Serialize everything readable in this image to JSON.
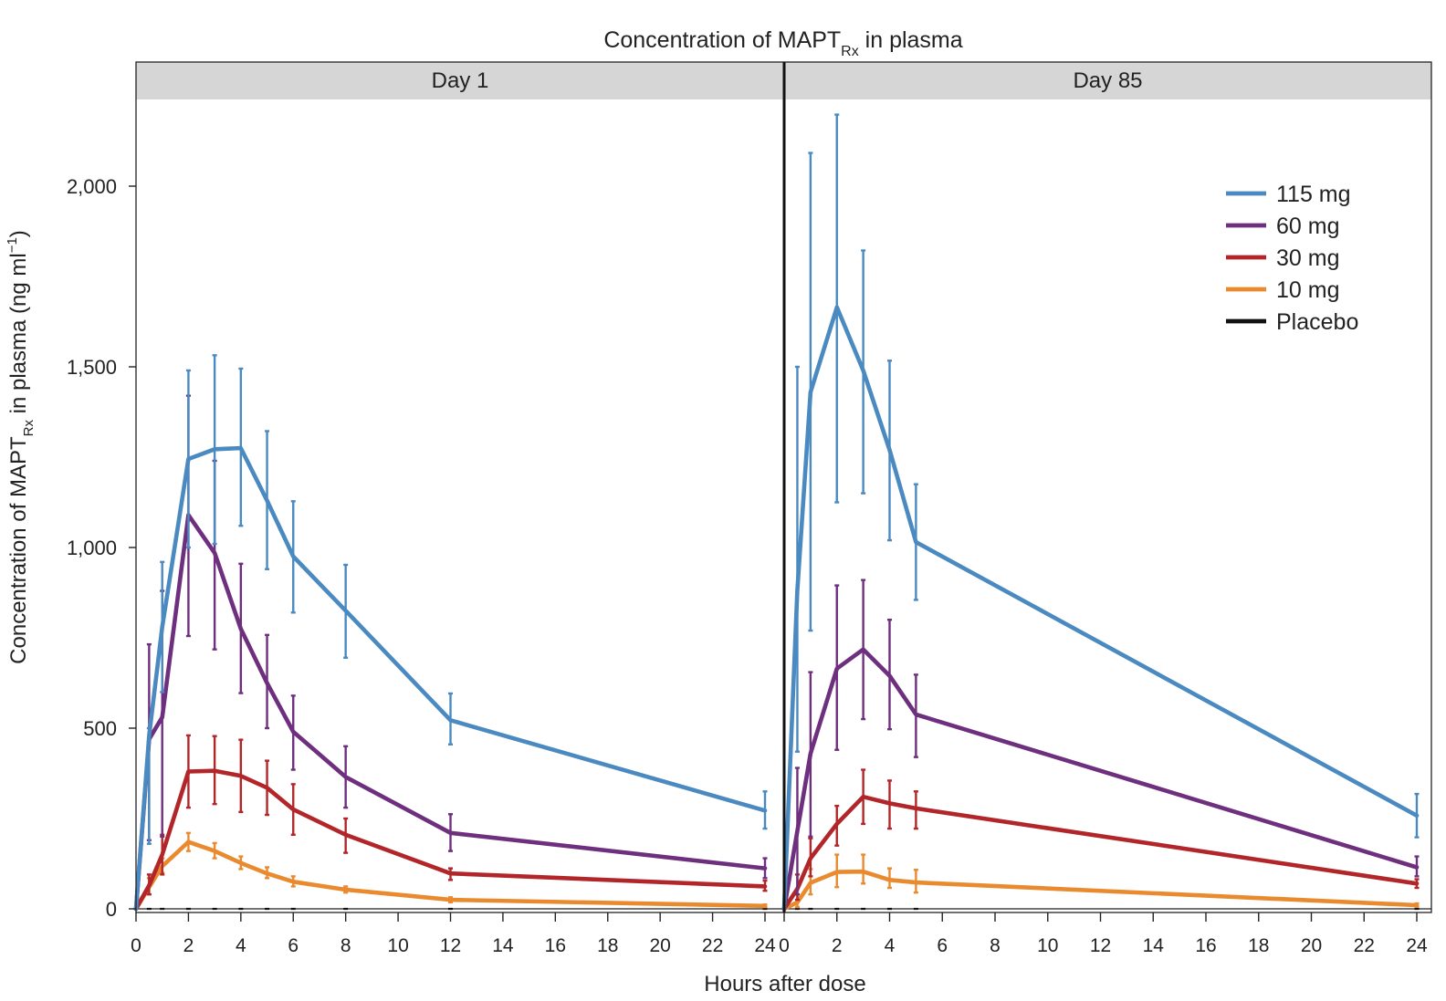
{
  "chart_data": {
    "type": "line",
    "title": "Concentration of MAPT",
    "title_subscript": "Rx",
    "title_suffix": " in plasma",
    "ylabel_prefix": "Concentration of MAPT",
    "ylabel_subscript": "Rx",
    "ylabel_suffix": " in plasma (ng ml",
    "ylabel_superscript": "−1",
    "ylabel_close": ")",
    "xlabel": "Hours after dose",
    "ylim": [
      0,
      2250
    ],
    "yticks": [
      0,
      500,
      1000,
      1500,
      2000
    ],
    "ytick_labels": [
      "0",
      "500",
      "1,000",
      "1,500",
      "2,000"
    ],
    "xlim": [
      0,
      24.3
    ],
    "xticks": [
      0,
      2,
      4,
      6,
      8,
      10,
      12,
      14,
      16,
      18,
      20,
      22,
      24
    ],
    "xtick_labels": [
      "0",
      "2",
      "4",
      "6",
      "8",
      "10",
      "12",
      "14",
      "16",
      "18",
      "20",
      "22",
      "24"
    ],
    "legend_position": "top-right",
    "colors": {
      "115 mg": "#4a8ac0",
      "60 mg": "#6e2f7e",
      "30 mg": "#b2262a",
      "10 mg": "#ea8a2e",
      "Placebo": "#111111"
    },
    "panels": [
      {
        "label": "Day 1",
        "x": [
          0,
          0.5,
          1,
          2,
          3,
          4,
          5,
          6,
          8,
          12,
          24
        ],
        "series": [
          {
            "name": "115 mg",
            "values": [
              0,
              480,
              780,
              1245,
              1272,
              1275,
              1130,
              975,
              825,
              522,
              272
            ],
            "err_low": [
              0,
              180,
              600,
              1000,
              1010,
              1060,
              940,
              820,
              695,
              455,
              222
            ],
            "err_high": [
              0,
              500,
              960,
              1490,
              1532,
              1495,
              1322,
              1128,
              952,
              596,
              325
            ]
          },
          {
            "name": "60 mg",
            "values": [
              0,
              470,
              530,
              1090,
              985,
              775,
              625,
              490,
              365,
              210,
              112
            ],
            "err_low": [
              0,
              190,
              200,
              755,
              718,
              597,
              500,
              385,
              280,
              160,
              85
            ],
            "err_high": [
              0,
              732,
              880,
              1420,
              1240,
              955,
              758,
              590,
              450,
              262,
              140
            ]
          },
          {
            "name": "30 mg",
            "values": [
              0,
              65,
              150,
              380,
              382,
              368,
              335,
              275,
              205,
              98,
              62
            ],
            "err_low": [
              0,
              40,
              95,
              280,
              290,
              268,
              260,
              205,
              155,
              80,
              50
            ],
            "err_high": [
              0,
              95,
              205,
              480,
              478,
              468,
              410,
              345,
              250,
              112,
              78
            ]
          },
          {
            "name": "10 mg",
            "values": [
              0,
              60,
              118,
              185,
              160,
              127,
              98,
              75,
              53,
              25,
              8
            ],
            "err_low": [
              0,
              40,
              100,
              160,
              140,
              110,
              85,
              62,
              45,
              18,
              5
            ],
            "err_high": [
              0,
              85,
              140,
              210,
              182,
              145,
              115,
              90,
              62,
              32,
              12
            ]
          },
          {
            "name": "Placebo",
            "values": [
              0,
              0,
              0,
              0,
              0,
              0,
              0,
              0,
              0,
              0,
              0
            ]
          }
        ]
      },
      {
        "label": "Day 85",
        "x": [
          0,
          0.5,
          1,
          2,
          3,
          4,
          5,
          24
        ],
        "series": [
          {
            "name": "115 mg",
            "values": [
              0,
              880,
              1430,
              1665,
              1490,
              1270,
              1015,
              258
            ],
            "err_low": [
              0,
              435,
              770,
              1125,
              1150,
              1020,
              855,
              198
            ],
            "err_high": [
              0,
              1500,
              2092,
              2198,
              1822,
              1517,
              1175,
              318
            ]
          },
          {
            "name": "60 mg",
            "values": [
              0,
              215,
              430,
              665,
              718,
              645,
              538,
              115
            ],
            "err_low": [
              0,
              40,
              200,
              440,
              525,
              497,
              420,
              90
            ],
            "err_high": [
              0,
              390,
              655,
              895,
              910,
              800,
              648,
              145
            ]
          },
          {
            "name": "30 mg",
            "values": [
              0,
              55,
              140,
              235,
              310,
              292,
              278,
              70
            ],
            "err_low": [
              0,
              25,
              90,
              175,
              235,
              222,
              222,
              58
            ],
            "err_high": [
              0,
              95,
              195,
              285,
              385,
              355,
              325,
              82
            ]
          },
          {
            "name": "10 mg",
            "values": [
              0,
              18,
              72,
              102,
              103,
              80,
              73,
              10
            ],
            "err_low": [
              0,
              5,
              40,
              60,
              70,
              58,
              45,
              6
            ],
            "err_high": [
              0,
              40,
              110,
              150,
              150,
              112,
              108,
              15
            ]
          },
          {
            "name": "Placebo",
            "values": [
              0,
              0,
              0,
              0,
              0,
              0,
              0,
              0
            ]
          }
        ]
      }
    ]
  }
}
